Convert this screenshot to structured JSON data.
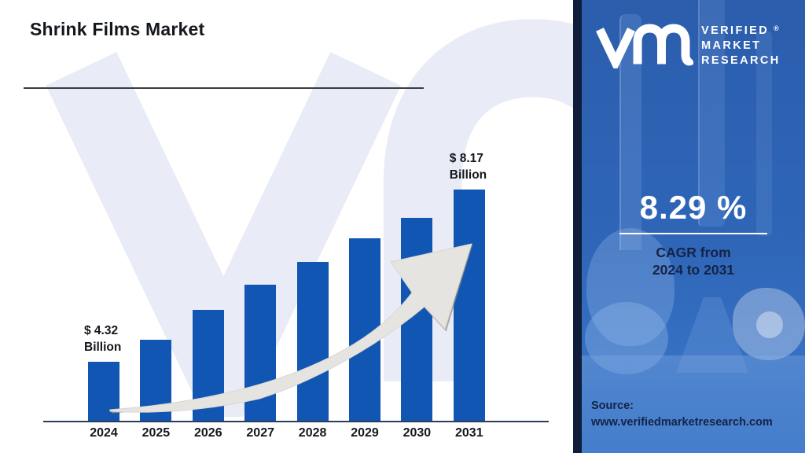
{
  "title": "Shrink Films Market",
  "chart_data": {
    "type": "bar",
    "title": "Shrink Films Market",
    "categories": [
      "2024",
      "2025",
      "2026",
      "2027",
      "2028",
      "2029",
      "2030",
      "2031"
    ],
    "values": [
      4.32,
      4.82,
      5.49,
      6.05,
      6.55,
      7.08,
      7.55,
      8.17
    ],
    "unit": "USD Billion",
    "labeled_values": {
      "2024": "$ 4.32 Billion",
      "2031": "$ 8.17 Billion"
    },
    "first_label": {
      "line1": "$ 4.32",
      "line2": "Billion"
    },
    "last_label": {
      "line1": "$ 8.17",
      "line2": "Billion"
    },
    "ylim": [
      3,
      8.6
    ],
    "grid": false,
    "legend": false,
    "bar_color": "#1156b2",
    "annotation": "upward curved growth arrow"
  },
  "panel": {
    "brand": {
      "line1": "VERIFIED",
      "line2": "MARKET",
      "line3": "RESEARCH",
      "registered": "®"
    },
    "cagr": {
      "value": "8.29 %",
      "caption_line1": "CAGR from",
      "caption_line2": "2024 to 2031"
    },
    "source": {
      "label": "Source:",
      "url": "www.verifiedmarketresearch.com"
    },
    "colors": {
      "panel_blue": "#2e63b5",
      "border_navy": "#101d3a",
      "caption_navy": "#142346",
      "value_white": "#ffffff"
    }
  }
}
